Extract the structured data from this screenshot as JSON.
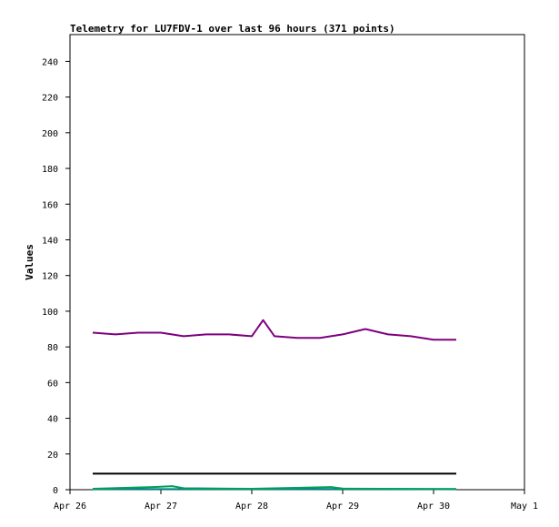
{
  "chart_data": {
    "type": "line",
    "title": "Telemetry for LU7FDV-1 over last 96 hours (371 points)",
    "xlabel": "",
    "ylabel": "Values",
    "ylim": [
      0,
      255
    ],
    "yticks": [
      0,
      20,
      40,
      60,
      80,
      100,
      120,
      140,
      160,
      180,
      200,
      220,
      240
    ],
    "x_ticks": [
      "Apr 26",
      "Apr 27",
      "Apr 28",
      "Apr 29",
      "Apr 30",
      "May 1"
    ],
    "x_start": "Apr 26",
    "x_end": "May 1",
    "grid": false,
    "legend": "none",
    "series": [
      {
        "color": "#7f007f",
        "x": [
          "Apr 26 06:00",
          "Apr 26 12:00",
          "Apr 26 18:00",
          "Apr 27 00:00",
          "Apr 27 06:00",
          "Apr 27 12:00",
          "Apr 27 18:00",
          "Apr 28 00:00",
          "Apr 28 03:00",
          "Apr 28 06:00",
          "Apr 28 12:00",
          "Apr 28 18:00",
          "Apr 29 00:00",
          "Apr 29 06:00",
          "Apr 29 12:00",
          "Apr 29 18:00",
          "Apr 30 00:00",
          "Apr 30 06:00"
        ],
        "values": [
          88,
          87,
          88,
          88,
          86,
          87,
          87,
          86,
          95,
          86,
          85,
          85,
          87,
          90,
          87,
          86,
          84,
          84
        ]
      },
      {
        "color": "#000000",
        "x": [
          "Apr 26 06:00",
          "Apr 30 06:00"
        ],
        "values": [
          9,
          9
        ]
      },
      {
        "color": "#008080",
        "x": [
          "Apr 26 06:00",
          "Apr 27 00:00",
          "Apr 28 00:00",
          "Apr 29 00:00",
          "Apr 30 00:00",
          "Apr 30 06:00"
        ],
        "values": [
          0.3,
          0.3,
          0.3,
          0.3,
          0.3,
          0.3
        ]
      },
      {
        "color": "#00a060",
        "x": [
          "Apr 26 06:00",
          "Apr 26 22:00",
          "Apr 27 03:00",
          "Apr 27 06:00",
          "Apr 28 00:00",
          "Apr 28 21:00",
          "Apr 29 00:00",
          "Apr 30 06:00"
        ],
        "values": [
          0.5,
          1.5,
          2,
          0.8,
          0.5,
          1.5,
          0.6,
          0.4
        ]
      }
    ]
  }
}
